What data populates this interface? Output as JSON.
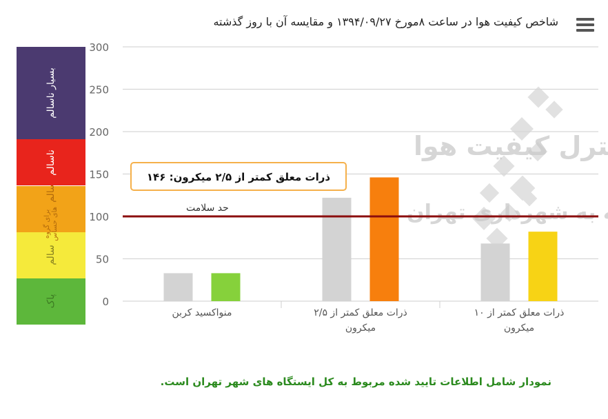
{
  "header": {
    "title": "شاخص کیفیت هوا در ساعت ۸مورخ ۱۳۹۴/۰۹/۲۷ و مقایسه آن با روز گذشته"
  },
  "aqi_scale": [
    {
      "label": "پاک",
      "from": 0,
      "to": 50,
      "color": "#5db73b",
      "text_color": "#3c7a22"
    },
    {
      "label": "سالم",
      "from": 50,
      "to": 100,
      "color": "#f5ea3b",
      "text_color": "#8a8420"
    },
    {
      "label": "ناسالم برای گروه های حساس",
      "line1": "ناسالم",
      "line2": "برای گروه های حساس",
      "from": 100,
      "to": 150,
      "color": "#f2a318",
      "text_color": "#b36b0c"
    },
    {
      "label": "ناسالم",
      "from": 150,
      "to": 200,
      "color": "#e8241c",
      "text_color": "#ffffff"
    },
    {
      "label": "بسیار ناسالم",
      "from": 200,
      "to": 300,
      "color": "#4b3a70",
      "text_color": "#ffffff"
    }
  ],
  "watermark": {
    "line1": "شرکت کنترل کیفیت هوا",
    "line2": "وابسته به شهرداری تهران",
    "color": "#c9c9c9"
  },
  "chart_data": {
    "type": "bar",
    "categories": [
      "منواکسید کربن",
      "ذرات معلق کمتر از ۲/۵ میکرون",
      "ذرات معلق کمتر از ۱۰ میکرون"
    ],
    "category_lines": [
      [
        "منواکسید کربن"
      ],
      [
        "ذرات معلق کمتر از ۲/۵",
        "میکرون"
      ],
      [
        "ذرات معلق کمتر از ۱۰",
        "میکرون"
      ]
    ],
    "series": [
      {
        "values": [
          33,
          122,
          68
        ],
        "color": "#d3d3d3"
      },
      {
        "values": [
          33,
          146,
          82
        ],
        "colors": [
          "#86d13b",
          "#f77f0d",
          "#f7d315"
        ]
      }
    ],
    "ylim": [
      0,
      300
    ],
    "yticks": [
      0,
      50,
      100,
      150,
      200,
      250,
      300
    ],
    "grid": true,
    "threshold": {
      "value": 100,
      "label": "حد سلامت",
      "color": "#8b0d0d"
    },
    "tooltip": {
      "text": "ذرات معلق کمتر از ۲/۵ میکرون: ۱۴۶",
      "border_color": "#f5b04a"
    }
  },
  "footnote": "نمودار شامل اطلاعات تایید شده مربوط به کل ایستگاه های شهر تهران است."
}
